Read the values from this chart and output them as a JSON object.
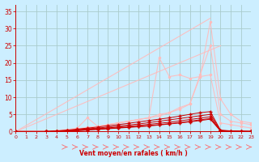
{
  "xlabel": "Vent moyen/en rafales ( km/h )",
  "xlim": [
    0,
    23
  ],
  "ylim": [
    0,
    37
  ],
  "yticks": [
    0,
    5,
    10,
    15,
    20,
    25,
    30,
    35
  ],
  "xticks": [
    0,
    1,
    2,
    3,
    4,
    5,
    6,
    7,
    8,
    9,
    10,
    11,
    12,
    13,
    14,
    15,
    16,
    17,
    18,
    19,
    20,
    21,
    22,
    23
  ],
  "bg_color": "#cceeff",
  "grid_color": "#aacccc",
  "axis_color": "#cc0000",
  "label_color": "#cc0000",
  "series_light": [
    {
      "x": [
        0,
        19
      ],
      "y": [
        0,
        33
      ],
      "color": "#ffbbbb",
      "alpha": 0.9,
      "lw": 0.8
    },
    {
      "x": [
        0,
        20
      ],
      "y": [
        0,
        25
      ],
      "color": "#ffbbbb",
      "alpha": 0.9,
      "lw": 0.8
    },
    {
      "x": [
        0,
        3,
        4,
        5,
        6,
        7,
        8,
        9,
        10,
        11,
        12,
        13,
        14,
        15,
        16,
        17,
        18,
        19,
        20,
        21,
        22,
        23
      ],
      "y": [
        0,
        0,
        0.3,
        0.6,
        1.0,
        4.0,
        1.5,
        2.0,
        2.5,
        3.0,
        3.5,
        4.0,
        4.5,
        5.5,
        6.5,
        8.0,
        16.0,
        32.0,
        9.5,
        5.0,
        3.0,
        2.5
      ],
      "color": "#ffbbbb",
      "alpha": 0.9,
      "lw": 0.8,
      "marker": "o",
      "ms": 1.5
    },
    {
      "x": [
        0,
        4,
        5,
        6,
        7,
        8,
        9,
        10,
        11,
        12,
        13,
        14,
        15,
        16,
        17,
        18,
        19,
        20,
        21,
        22,
        23
      ],
      "y": [
        0,
        0,
        0.3,
        0.8,
        1.2,
        1.5,
        2.0,
        2.5,
        3.0,
        3.5,
        4.0,
        5.0,
        5.5,
        7.0,
        8.0,
        16.5,
        25.0,
        5.0,
        3.0,
        2.5,
        2.0
      ],
      "color": "#ffbbbb",
      "alpha": 0.9,
      "lw": 0.8,
      "marker": "o",
      "ms": 1.5
    },
    {
      "x": [
        0,
        5,
        6,
        7,
        8,
        9,
        10,
        11,
        12,
        13,
        14,
        15,
        16,
        17,
        18,
        19,
        20,
        21,
        22,
        23
      ],
      "y": [
        0,
        0.2,
        0.5,
        1.0,
        1.5,
        2.0,
        2.5,
        3.0,
        3.5,
        4.0,
        21.5,
        16.0,
        16.5,
        15.5,
        16.0,
        16.5,
        2.5,
        2.0,
        1.5,
        1.0
      ],
      "color": "#ffbbbb",
      "alpha": 0.9,
      "lw": 0.8,
      "marker": "o",
      "ms": 1.5
    }
  ],
  "series_red": [
    {
      "x": [
        0,
        3,
        4,
        5,
        6,
        7,
        8,
        9,
        10,
        11,
        12,
        13,
        14,
        15,
        16,
        17,
        18,
        19,
        20,
        21,
        22,
        23
      ],
      "y": [
        0,
        0,
        0.1,
        0.2,
        0.3,
        0.5,
        0.7,
        0.9,
        1.1,
        1.3,
        1.5,
        1.8,
        2.0,
        2.3,
        2.6,
        3.0,
        3.4,
        3.8,
        0.2,
        0.1,
        0.05,
        0.02
      ],
      "color": "#cc0000",
      "alpha": 1.0,
      "lw": 0.7,
      "marker": "+",
      "ms": 2.5
    },
    {
      "x": [
        0,
        3,
        4,
        5,
        6,
        7,
        8,
        9,
        10,
        11,
        12,
        13,
        14,
        15,
        16,
        17,
        18,
        19,
        20,
        21,
        22,
        23
      ],
      "y": [
        0,
        0,
        0.15,
        0.3,
        0.5,
        0.8,
        1.0,
        1.3,
        1.6,
        1.9,
        2.2,
        2.6,
        3.0,
        3.4,
        3.8,
        4.2,
        4.6,
        5.0,
        0.3,
        0.15,
        0.08,
        0.03
      ],
      "color": "#cc0000",
      "alpha": 1.0,
      "lw": 0.7,
      "marker": "+",
      "ms": 2.5
    },
    {
      "x": [
        0,
        3,
        4,
        5,
        6,
        7,
        8,
        9,
        10,
        11,
        12,
        13,
        14,
        15,
        16,
        17,
        18,
        19,
        20,
        21,
        22,
        23
      ],
      "y": [
        0,
        0,
        0.2,
        0.4,
        0.7,
        1.0,
        1.3,
        1.7,
        2.0,
        2.4,
        2.8,
        3.2,
        3.6,
        4.0,
        4.5,
        5.0,
        5.5,
        5.8,
        0.4,
        0.2,
        0.1,
        0.04
      ],
      "color": "#cc0000",
      "alpha": 1.0,
      "lw": 0.7,
      "marker": "+",
      "ms": 2.5
    },
    {
      "x": [
        0,
        3,
        4,
        5,
        6,
        7,
        8,
        9,
        10,
        11,
        12,
        13,
        14,
        15,
        16,
        17,
        18,
        19,
        20,
        21,
        22,
        23
      ],
      "y": [
        0,
        0,
        0.1,
        0.25,
        0.45,
        0.65,
        0.85,
        1.05,
        1.3,
        1.55,
        1.8,
        2.1,
        2.4,
        2.7,
        3.1,
        3.5,
        3.9,
        4.3,
        0.25,
        0.12,
        0.06,
        0.02
      ],
      "color": "#cc0000",
      "alpha": 1.0,
      "lw": 0.7,
      "marker": "+",
      "ms": 2.5
    },
    {
      "x": [
        0,
        3,
        4,
        5,
        6,
        7,
        8,
        9,
        10,
        11,
        12,
        13,
        14,
        15,
        16,
        17,
        18,
        19,
        20,
        21,
        22,
        23
      ],
      "y": [
        0,
        0,
        0.05,
        0.15,
        0.25,
        0.4,
        0.6,
        0.8,
        1.0,
        1.2,
        1.4,
        1.6,
        1.9,
        2.2,
        2.5,
        2.8,
        3.2,
        3.6,
        0.15,
        0.07,
        0.03,
        0.01
      ],
      "color": "#cc0000",
      "alpha": 1.0,
      "lw": 0.7,
      "marker": "+",
      "ms": 2.5
    }
  ]
}
